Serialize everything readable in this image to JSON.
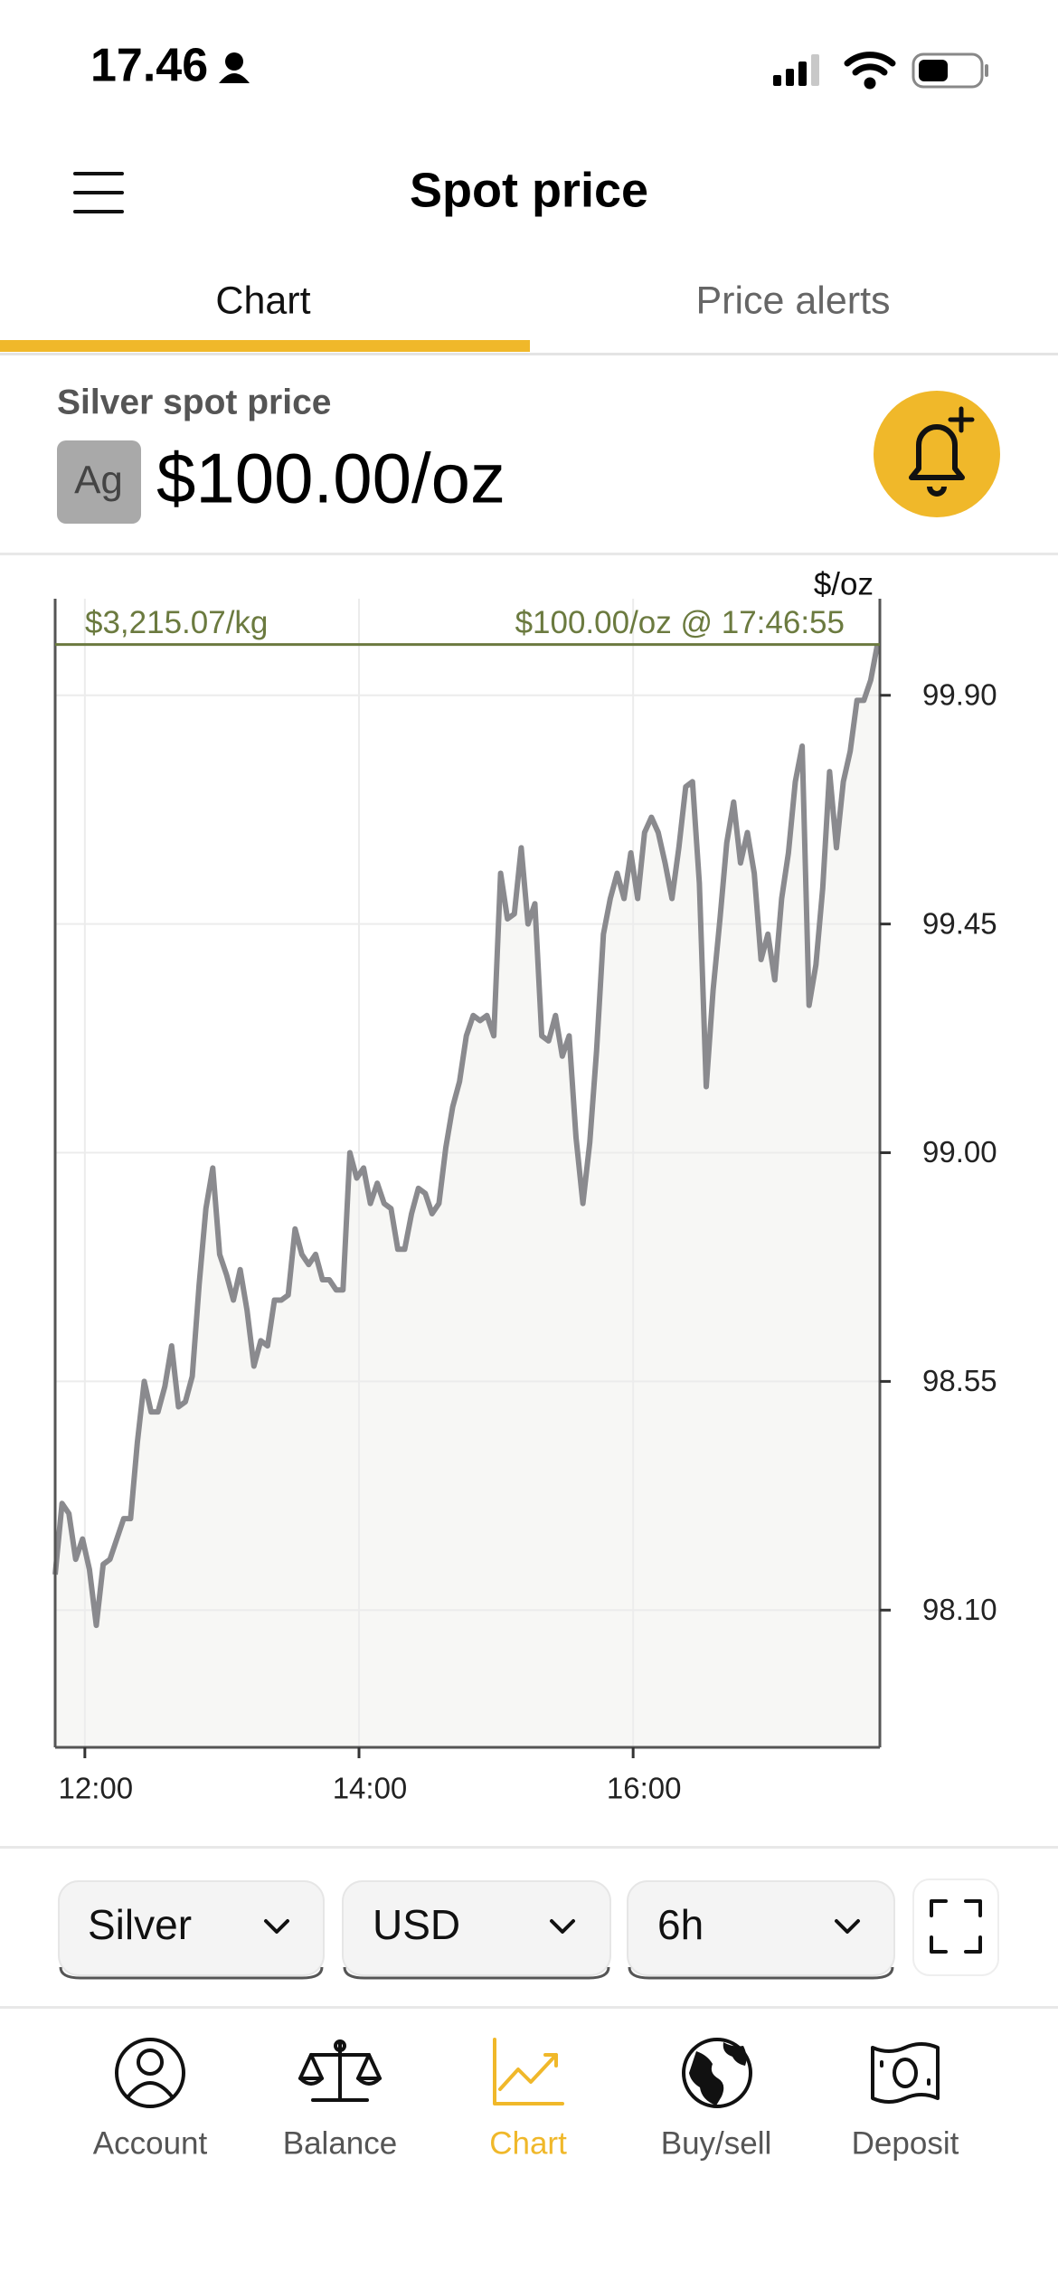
{
  "status_bar": {
    "time": "17.46"
  },
  "header": {
    "title": "Spot price"
  },
  "tabs": [
    "Chart",
    "Price alerts"
  ],
  "price": {
    "label": "Silver spot price",
    "symbol": "Ag",
    "value": "$100.00/oz"
  },
  "chart_data": {
    "type": "line",
    "y_unit_label": "$/oz",
    "color": "#8a8a8e",
    "fill_color": "#f7f7f5",
    "grid": true,
    "x": [
      "11:47",
      "11:50",
      "11:53",
      "11:56",
      "11:59",
      "12:02",
      "12:05",
      "12:08",
      "12:11",
      "12:14",
      "12:17",
      "12:20",
      "12:23",
      "12:26",
      "12:29",
      "12:32",
      "12:35",
      "12:38",
      "12:41",
      "12:44",
      "12:47",
      "12:50",
      "12:53",
      "12:56",
      "12:59",
      "13:02",
      "13:05",
      "13:08",
      "13:11",
      "13:14",
      "13:17",
      "13:20",
      "13:23",
      "13:26",
      "13:29",
      "13:32",
      "13:35",
      "13:38",
      "13:41",
      "13:44",
      "13:47",
      "13:50",
      "13:53",
      "13:56",
      "13:59",
      "14:02",
      "14:05",
      "14:08",
      "14:11",
      "14:14",
      "14:17",
      "14:20",
      "14:23",
      "14:26",
      "14:29",
      "14:32",
      "14:35",
      "14:38",
      "14:41",
      "14:44",
      "14:47",
      "14:50",
      "14:53",
      "14:56",
      "14:59",
      "15:02",
      "15:05",
      "15:08",
      "15:11",
      "15:14",
      "15:17",
      "15:20",
      "15:23",
      "15:26",
      "15:29",
      "15:32",
      "15:35",
      "15:38",
      "15:41",
      "15:44",
      "15:47",
      "15:50",
      "15:53",
      "15:56",
      "15:59",
      "16:02",
      "16:05",
      "16:08",
      "16:11",
      "16:14",
      "16:17",
      "16:20",
      "16:23",
      "16:26",
      "16:29",
      "16:32",
      "16:35",
      "16:38",
      "16:41",
      "16:44",
      "16:47",
      "16:50",
      "16:53",
      "16:56",
      "16:59",
      "17:02",
      "17:05",
      "17:08",
      "17:11",
      "17:14",
      "17:17",
      "17:20",
      "17:23",
      "17:26",
      "17:29",
      "17:32",
      "17:35",
      "17:38",
      "17:41",
      "17:44",
      "17:46:55"
    ],
    "values": [
      98.17,
      98.31,
      98.29,
      98.2,
      98.24,
      98.18,
      98.07,
      98.19,
      98.2,
      98.24,
      98.28,
      98.28,
      98.43,
      98.55,
      98.49,
      98.49,
      98.54,
      98.62,
      98.5,
      98.51,
      98.56,
      98.74,
      98.89,
      98.97,
      98.8,
      98.76,
      98.71,
      98.77,
      98.69,
      98.58,
      98.63,
      98.62,
      98.71,
      98.71,
      98.72,
      98.85,
      98.8,
      98.78,
      98.8,
      98.75,
      98.75,
      98.73,
      98.73,
      99.0,
      98.95,
      98.97,
      98.9,
      98.94,
      98.9,
      98.89,
      98.81,
      98.81,
      98.88,
      98.93,
      98.92,
      98.88,
      98.9,
      99.01,
      99.09,
      99.14,
      99.23,
      99.27,
      99.26,
      99.27,
      99.23,
      99.55,
      99.46,
      99.47,
      99.6,
      99.45,
      99.49,
      99.23,
      99.22,
      99.27,
      99.19,
      99.23,
      99.03,
      98.9,
      99.02,
      99.2,
      99.43,
      99.5,
      99.55,
      99.5,
      99.59,
      99.5,
      99.63,
      99.66,
      99.63,
      99.57,
      99.5,
      99.6,
      99.72,
      99.73,
      99.53,
      99.13,
      99.32,
      99.46,
      99.61,
      99.69,
      99.57,
      99.63,
      99.55,
      99.38,
      99.43,
      99.34,
      99.5,
      99.59,
      99.73,
      99.8,
      99.29,
      99.37,
      99.52,
      99.75,
      99.6,
      99.73,
      99.79,
      99.89,
      99.89,
      99.93,
      100
    ],
    "xlim": [
      "11:47",
      "17:48"
    ],
    "xticks": [
      "12:00",
      "14:00",
      "16:00"
    ],
    "ylim": [
      97.83,
      100.09
    ],
    "yticks": [
      {
        "value": 98.1,
        "label": "98.10"
      },
      {
        "value": 98.55,
        "label": "98.55"
      },
      {
        "value": 99.0,
        "label": "99.00"
      },
      {
        "value": 99.45,
        "label": "99.45"
      },
      {
        "value": 99.9,
        "label": "99.90"
      }
    ],
    "reference": {
      "value": 100,
      "color": "#6b7a3f",
      "label": "$100.00/oz @ 17:46:55",
      "secondary_label": "$3,215.07/kg"
    }
  },
  "controls": [
    "Silver",
    "USD",
    "6h"
  ],
  "nav": [
    "Account",
    "Balance",
    "Chart",
    "Buy/sell",
    "Deposit"
  ]
}
